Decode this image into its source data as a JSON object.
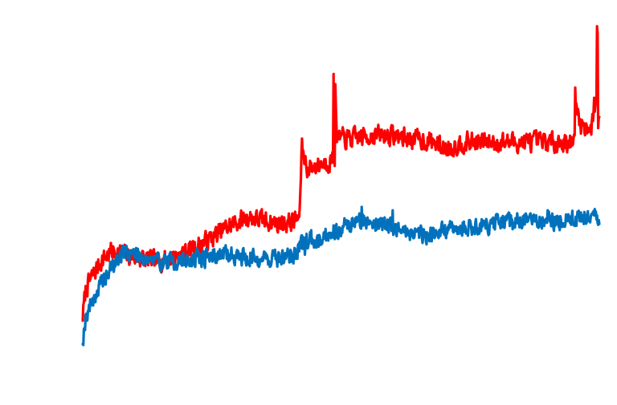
{
  "chart_data": {
    "type": "line",
    "title": "",
    "xlabel": "",
    "ylabel": "",
    "grid": false,
    "legend": "none",
    "axes_visible": false,
    "xlim": [
      0,
      1000
    ],
    "ylim": [
      0,
      100
    ],
    "series": [
      {
        "color": "#ff0000",
        "noise": 2.6,
        "seed": 7,
        "points": [
          [
            0,
            12
          ],
          [
            6,
            20
          ],
          [
            20,
            24
          ],
          [
            35,
            28
          ],
          [
            55,
            31
          ],
          [
            80,
            30
          ],
          [
            110,
            29
          ],
          [
            140,
            28
          ],
          [
            170,
            29
          ],
          [
            200,
            31
          ],
          [
            230,
            33
          ],
          [
            260,
            36
          ],
          [
            290,
            39
          ],
          [
            320,
            41
          ],
          [
            350,
            40
          ],
          [
            385,
            39
          ],
          [
            410,
            40
          ],
          [
            420,
            41
          ],
          [
            421,
            48
          ],
          [
            424,
            62
          ],
          [
            428,
            59
          ],
          [
            436,
            55
          ],
          [
            450,
            56
          ],
          [
            470,
            57
          ],
          [
            488,
            58
          ],
          [
            490,
            72
          ],
          [
            491,
            67
          ],
          [
            493,
            64
          ],
          [
            520,
            64
          ],
          [
            560,
            65
          ],
          [
            600,
            65
          ],
          [
            640,
            64
          ],
          [
            680,
            63
          ],
          [
            700,
            61
          ],
          [
            740,
            63
          ],
          [
            750,
            63
          ],
          [
            952,
            63
          ],
          [
            955,
            74
          ],
          [
            960,
            71
          ],
          [
            965,
            68
          ],
          [
            985,
            67
          ],
          [
            992,
            74
          ],
          [
            994,
            79
          ],
          [
            996,
            70
          ],
          [
            998,
            68
          ],
          [
            1000,
            70
          ]
        ],
        "spikes": [
          [
            486,
            83
          ],
          [
            489,
            80
          ],
          [
            953,
            79
          ],
          [
            990,
            76
          ],
          [
            995,
            97
          ],
          [
            997,
            95
          ]
        ]
      },
      {
        "color": "#0072bd",
        "noise": 2.4,
        "seed": 19,
        "points": [
          [
            0,
            5
          ],
          [
            6,
            12
          ],
          [
            20,
            17
          ],
          [
            35,
            21
          ],
          [
            55,
            26
          ],
          [
            80,
            31
          ],
          [
            110,
            30
          ],
          [
            140,
            28
          ],
          [
            170,
            28
          ],
          [
            200,
            28
          ],
          [
            230,
            29
          ],
          [
            260,
            30
          ],
          [
            290,
            30
          ],
          [
            320,
            29
          ],
          [
            350,
            29
          ],
          [
            385,
            29
          ],
          [
            410,
            30
          ],
          [
            430,
            34
          ],
          [
            460,
            35
          ],
          [
            500,
            38
          ],
          [
            540,
            40
          ],
          [
            580,
            39
          ],
          [
            620,
            37
          ],
          [
            660,
            36
          ],
          [
            700,
            37
          ],
          [
            740,
            38
          ],
          [
            800,
            39
          ],
          [
            860,
            40
          ],
          [
            920,
            40
          ],
          [
            970,
            41
          ],
          [
            1000,
            41
          ]
        ],
        "spikes": [
          [
            430,
            30
          ],
          [
            540,
            44
          ],
          [
            600,
            43
          ],
          [
            900,
            43
          ]
        ]
      }
    ]
  }
}
